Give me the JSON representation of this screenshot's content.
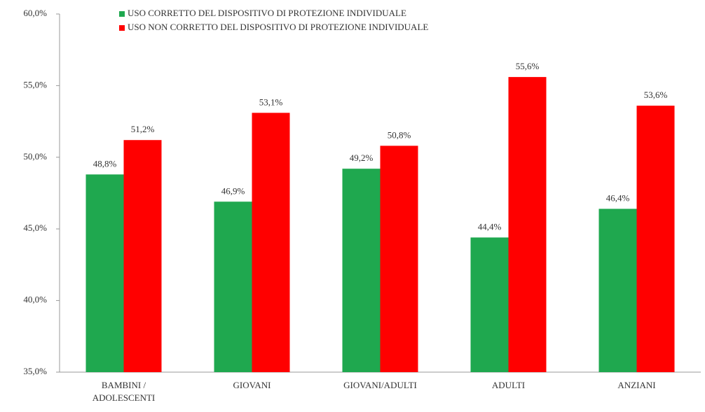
{
  "chart_data": {
    "type": "bar",
    "categories": [
      "BAMBINI / ADOLESCENTI",
      "GIOVANI",
      "GIOVANI/ADULTI",
      "ADULTI",
      "ANZIANI"
    ],
    "series": [
      {
        "name": "USO CORRETTO DEL DISPOSITIVO DI PROTEZIONE INDIVIDUALE",
        "color": "#1fa84f",
        "values": [
          48.8,
          46.9,
          49.2,
          44.4,
          46.4
        ],
        "value_labels": [
          "48,8%",
          "46,9%",
          "49,2%",
          "44,4%",
          "46,4%"
        ]
      },
      {
        "name": "USO NON CORRETTO DEL DISPOSITIVO DI PROTEZIONE INDIVIDUALE",
        "color": "#ff0000",
        "values": [
          51.2,
          53.1,
          50.8,
          55.6,
          53.6
        ],
        "value_labels": [
          "51,2%",
          "53,1%",
          "50,8%",
          "55,6%",
          "53,6%"
        ]
      }
    ],
    "ylim": [
      35,
      60
    ],
    "yticks": [
      {
        "value": 35,
        "label": "35,0%"
      },
      {
        "value": 40,
        "label": "40,0%"
      },
      {
        "value": 45,
        "label": "45,0%"
      },
      {
        "value": 50,
        "label": "50,0%"
      },
      {
        "value": 55,
        "label": "55,0%"
      },
      {
        "value": 60,
        "label": "60,0%"
      }
    ],
    "legend": "top"
  }
}
